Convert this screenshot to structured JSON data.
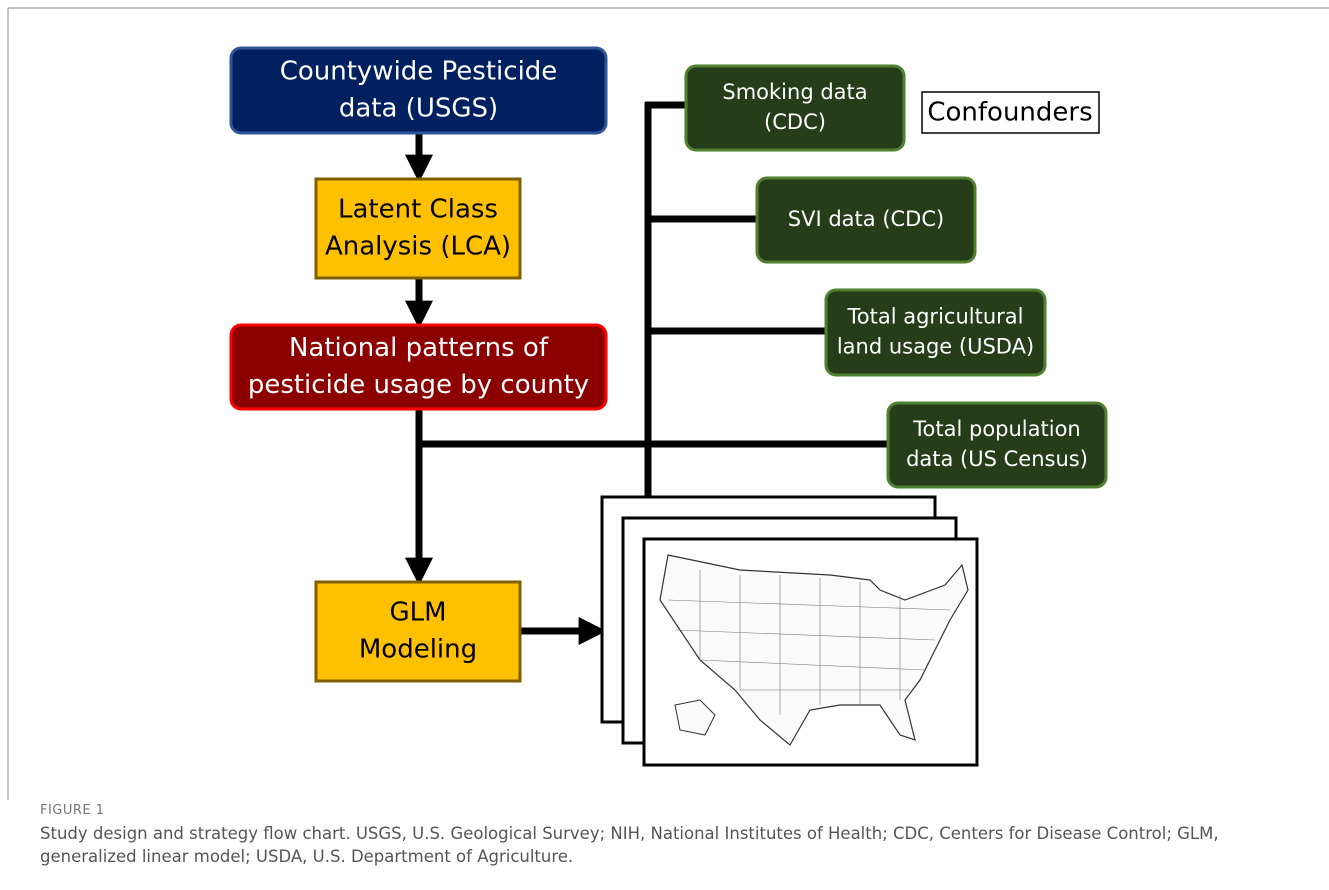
{
  "nodes": [
    {
      "lines": [
        "Countywide Pesticide",
        "data (USGS)"
      ]
    },
    {
      "lines": [
        "Latent Class",
        "Analysis (LCA)"
      ]
    },
    {
      "lines": [
        "National patterns of",
        "pesticide usage by county"
      ]
    },
    {
      "lines": [
        "GLM",
        "Modeling"
      ]
    },
    {
      "lines": [
        "Smoking data",
        "(CDC)"
      ]
    },
    {
      "lines": [
        "SVI data (CDC)"
      ]
    },
    {
      "lines": [
        "Total agricultural",
        "land usage (USDA)"
      ]
    },
    {
      "lines": [
        "Total population",
        "data (US Census)"
      ]
    }
  ],
  "confounders": "Confounders",
  "caption": {
    "label": "FIGURE 1",
    "text": "Study design and strategy flow chart. USGS, U.S. Geological Survey; NIH, National Institutes of Health; CDC, Centers for Disease Control; GLM, generalized linear model; USDA, U.S. Department of Agriculture."
  }
}
